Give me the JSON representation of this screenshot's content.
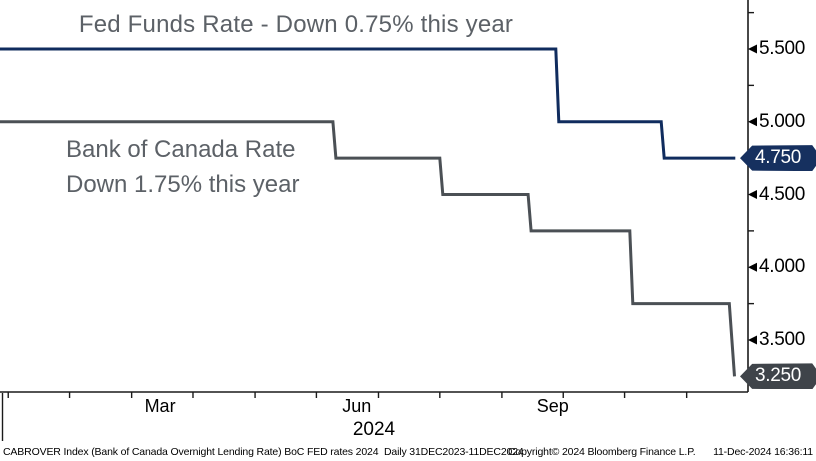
{
  "footer": {
    "left": "CABROVER Index (Bank of Canada Overnight Lending Rate) BoC FED rates 2024  Daily 31DEC2023-11DEC2024",
    "copyright": "Copyright© 2024 Bloomberg Finance L.P.",
    "datetime": "11-Dec-2024 16:36:11"
  },
  "colors": {
    "fed_line": "#102c5e",
    "boc_line": "#4b5055",
    "fed_badge_bg": "#16305f",
    "boc_badge_bg": "#3f444a",
    "annotation_text": "#5c6167",
    "axis": "#1a1a1a"
  },
  "chart_data": {
    "type": "line",
    "style": "step",
    "title": "Fed Funds Rate - Down 0.75% this year",
    "annotations": [
      "Bank of Canada Rate",
      "Down 1.75% this year"
    ],
    "x_range": [
      "31DEC2023",
      "11DEC2024"
    ],
    "ylim": [
      3.1,
      5.8
    ],
    "y_axis": {
      "major_ticks": [
        {
          "value": 5.5,
          "label": "5.500"
        },
        {
          "value": 5.0,
          "label": "5.000"
        },
        {
          "value": 4.5,
          "label": "4.500"
        },
        {
          "value": 4.0,
          "label": "4.000"
        },
        {
          "value": 3.5,
          "label": "3.500"
        }
      ],
      "minor_ticks": [
        5.75,
        5.25,
        4.25,
        3.75
      ],
      "badges": [
        {
          "value": 4.75,
          "label": "4.750",
          "series": "fed",
          "color_key": "fed_badge_bg"
        },
        {
          "value": 3.25,
          "label": "3.250",
          "series": "boc",
          "color_key": "boc_badge_bg"
        }
      ]
    },
    "x_axis": {
      "month_tick_t": [
        0.011,
        0.093,
        0.176,
        0.258,
        0.341,
        0.423,
        0.506,
        0.588,
        0.671,
        0.753,
        0.835,
        0.918
      ],
      "labels": [
        {
          "label": "Mar",
          "t": 0.214
        },
        {
          "label": "Jun",
          "t": 0.477
        },
        {
          "label": "Sep",
          "t": 0.739
        }
      ],
      "year_label": {
        "label": "2024",
        "t": 0.5
      }
    },
    "series": [
      {
        "name": "Fed Funds Rate",
        "color_key": "fed_line",
        "last_value": 4.75,
        "points": [
          [
            0.0,
            5.5
          ],
          [
            0.743,
            5.5
          ],
          [
            0.747,
            5.0
          ],
          [
            0.884,
            5.0
          ],
          [
            0.888,
            4.75
          ],
          [
            0.983,
            4.75
          ]
        ]
      },
      {
        "name": "Bank of Canada Rate",
        "color_key": "boc_line",
        "last_value": 3.25,
        "points": [
          [
            0.0,
            5.0
          ],
          [
            0.445,
            5.0
          ],
          [
            0.449,
            4.75
          ],
          [
            0.588,
            4.75
          ],
          [
            0.592,
            4.5
          ],
          [
            0.706,
            4.5
          ],
          [
            0.71,
            4.25
          ],
          [
            0.842,
            4.25
          ],
          [
            0.846,
            3.75
          ],
          [
            0.975,
            3.75
          ],
          [
            0.982,
            3.25
          ]
        ]
      }
    ]
  }
}
